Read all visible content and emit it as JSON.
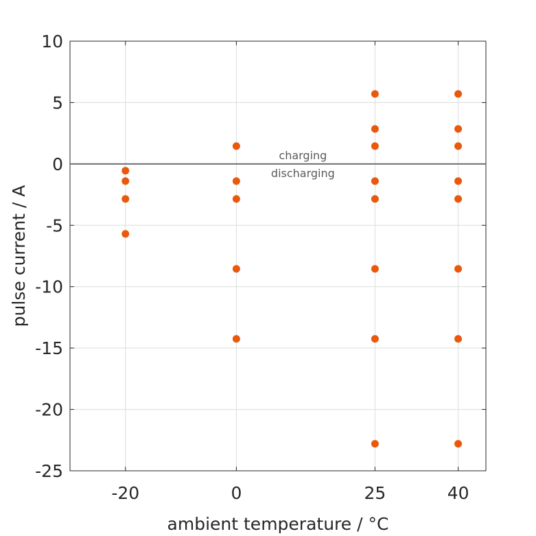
{
  "chart_data": {
    "type": "scatter",
    "title": "",
    "xlabel": "ambient temperature / °C",
    "ylabel": "pulse current / A",
    "xlim": [
      -30,
      45
    ],
    "ylim": [
      -25,
      10
    ],
    "xticks": [
      -20,
      0,
      25,
      40
    ],
    "yticks": [
      10,
      5,
      0,
      -5,
      -10,
      -15,
      -20,
      -25
    ],
    "grid": true,
    "marker_color": "#E8590C",
    "zero_line": {
      "y": 0,
      "above_label": "charging",
      "below_label": "discharging",
      "label_x": 12
    },
    "series": [
      {
        "points": [
          [
            -20,
            -0.55
          ],
          [
            -20,
            -1.4
          ],
          [
            -20,
            -2.85
          ],
          [
            -20,
            -5.7
          ],
          [
            0,
            1.45
          ],
          [
            0,
            -1.4
          ],
          [
            0,
            -2.85
          ],
          [
            0,
            -8.55
          ],
          [
            0,
            -14.25
          ],
          [
            25,
            5.7
          ],
          [
            25,
            2.85
          ],
          [
            25,
            1.45
          ],
          [
            25,
            -1.4
          ],
          [
            25,
            -2.85
          ],
          [
            25,
            -8.55
          ],
          [
            25,
            -14.25
          ],
          [
            25,
            -22.8
          ],
          [
            40,
            5.7
          ],
          [
            40,
            2.85
          ],
          [
            40,
            1.45
          ],
          [
            40,
            -1.4
          ],
          [
            40,
            -2.85
          ],
          [
            40,
            -8.55
          ],
          [
            40,
            -14.25
          ],
          [
            40,
            -22.8
          ]
        ]
      }
    ]
  }
}
